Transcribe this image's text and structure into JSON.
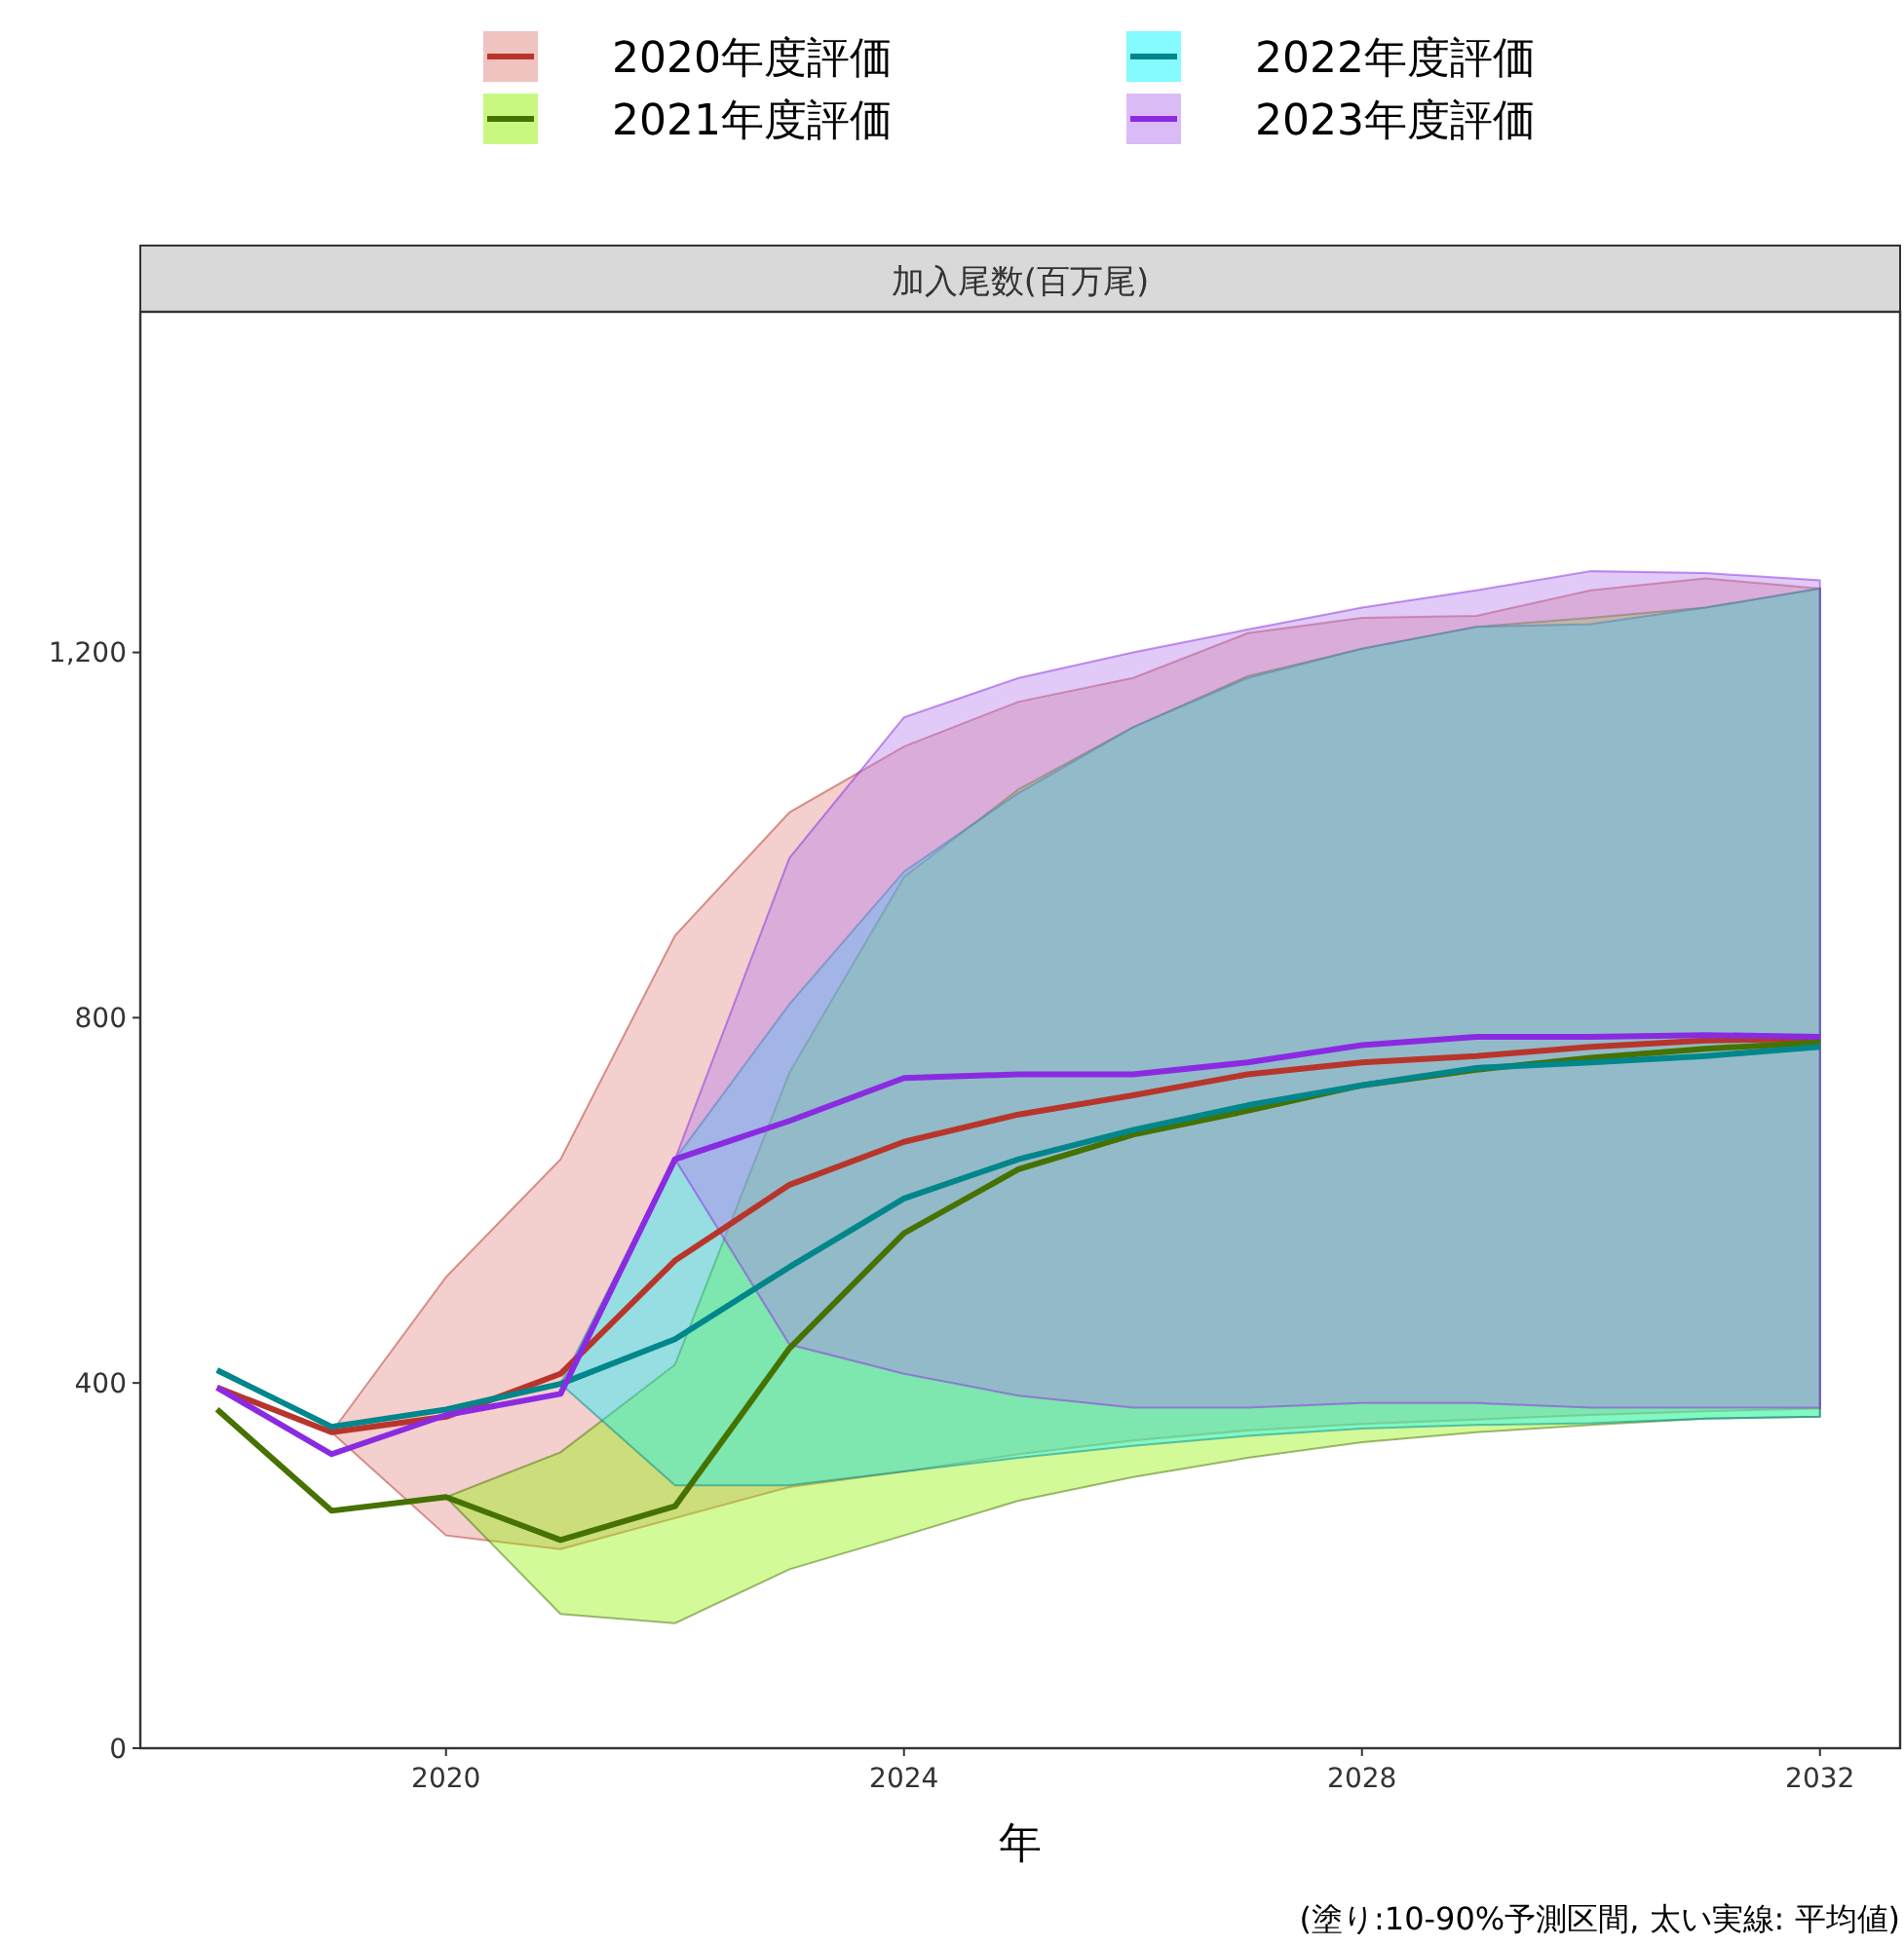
{
  "chart_data": {
    "type": "line",
    "title": "加入尾数(百万尾)",
    "xlabel": "年",
    "annotations": [
      "(塗り:10-90%予測区間, 太い実線: 平均値)"
    ],
    "x": [
      2018,
      2019,
      2020,
      2021,
      2022,
      2023,
      2024,
      2025,
      2026,
      2027,
      2028,
      2029,
      2030,
      2031,
      2032
    ],
    "xlim": [
      2017.33,
      2032.7
    ],
    "xticks": [
      2020,
      2024,
      2028,
      2032
    ],
    "ylim": [
      0,
      1573
    ],
    "yticks": [
      0,
      400,
      800,
      {
        "value": 1200,
        "label": "1,200"
      }
    ],
    "grid": false,
    "legend": "top",
    "series": [
      {
        "name": "2020年度評価",
        "color": "#b8352b",
        "values": [
          395,
          346,
          363,
          410,
          534,
          617,
          664,
          694,
          715,
          738,
          751,
          758,
          768,
          775,
          777
        ],
        "lower": [
          null,
          346,
          233,
          218,
          252,
          286,
          303,
          322,
          337,
          348,
          355,
          360,
          365,
          369,
          372
        ],
        "upper": [
          null,
          346,
          516,
          645,
          890,
          1025,
          1097,
          1146,
          1172,
          1221,
          1238,
          1240,
          1268,
          1281,
          1270
        ]
      },
      {
        "name": "2021年度評価",
        "color": "#457200",
        "values": [
          371,
          260,
          275,
          228,
          265,
          438,
          564,
          634,
          672,
          698,
          726,
          743,
          756,
          766,
          773
        ],
        "lower": [
          null,
          null,
          275,
          147,
          137,
          196,
          233,
          271,
          297,
          318,
          335,
          346,
          354,
          361,
          363
        ],
        "upper": [
          null,
          null,
          275,
          324,
          420,
          740,
          954,
          1050,
          1118,
          1174,
          1204,
          1228,
          1238,
          1249,
          1270
        ]
      },
      {
        "name": "2022年度評価",
        "color": "#00868b",
        "values": [
          414,
          352,
          371,
          399,
          448,
          527,
          602,
          645,
          677,
          704,
          726,
          745,
          751,
          758,
          768
        ],
        "lower": [
          null,
          null,
          null,
          399,
          288,
          288,
          303,
          318,
          331,
          342,
          350,
          354,
          356,
          361,
          363
        ],
        "upper": [
          null,
          null,
          null,
          399,
          645,
          815,
          960,
          1046,
          1118,
          1172,
          1204,
          1228,
          1231,
          1249,
          1270
        ]
      },
      {
        "name": "2023年度評価",
        "color": "#8a2be2",
        "values": [
          395,
          322,
          365,
          388,
          645,
          687,
          734,
          738,
          738,
          751,
          770,
          779,
          779,
          781,
          779
        ],
        "lower": [
          null,
          null,
          null,
          null,
          645,
          442,
          410,
          386,
          373,
          373,
          378,
          378,
          373,
          373,
          373
        ],
        "upper": [
          null,
          null,
          null,
          null,
          645,
          975,
          1129,
          1172,
          1200,
          1225,
          1249,
          1268,
          1289,
          1287,
          1279
        ]
      }
    ]
  }
}
